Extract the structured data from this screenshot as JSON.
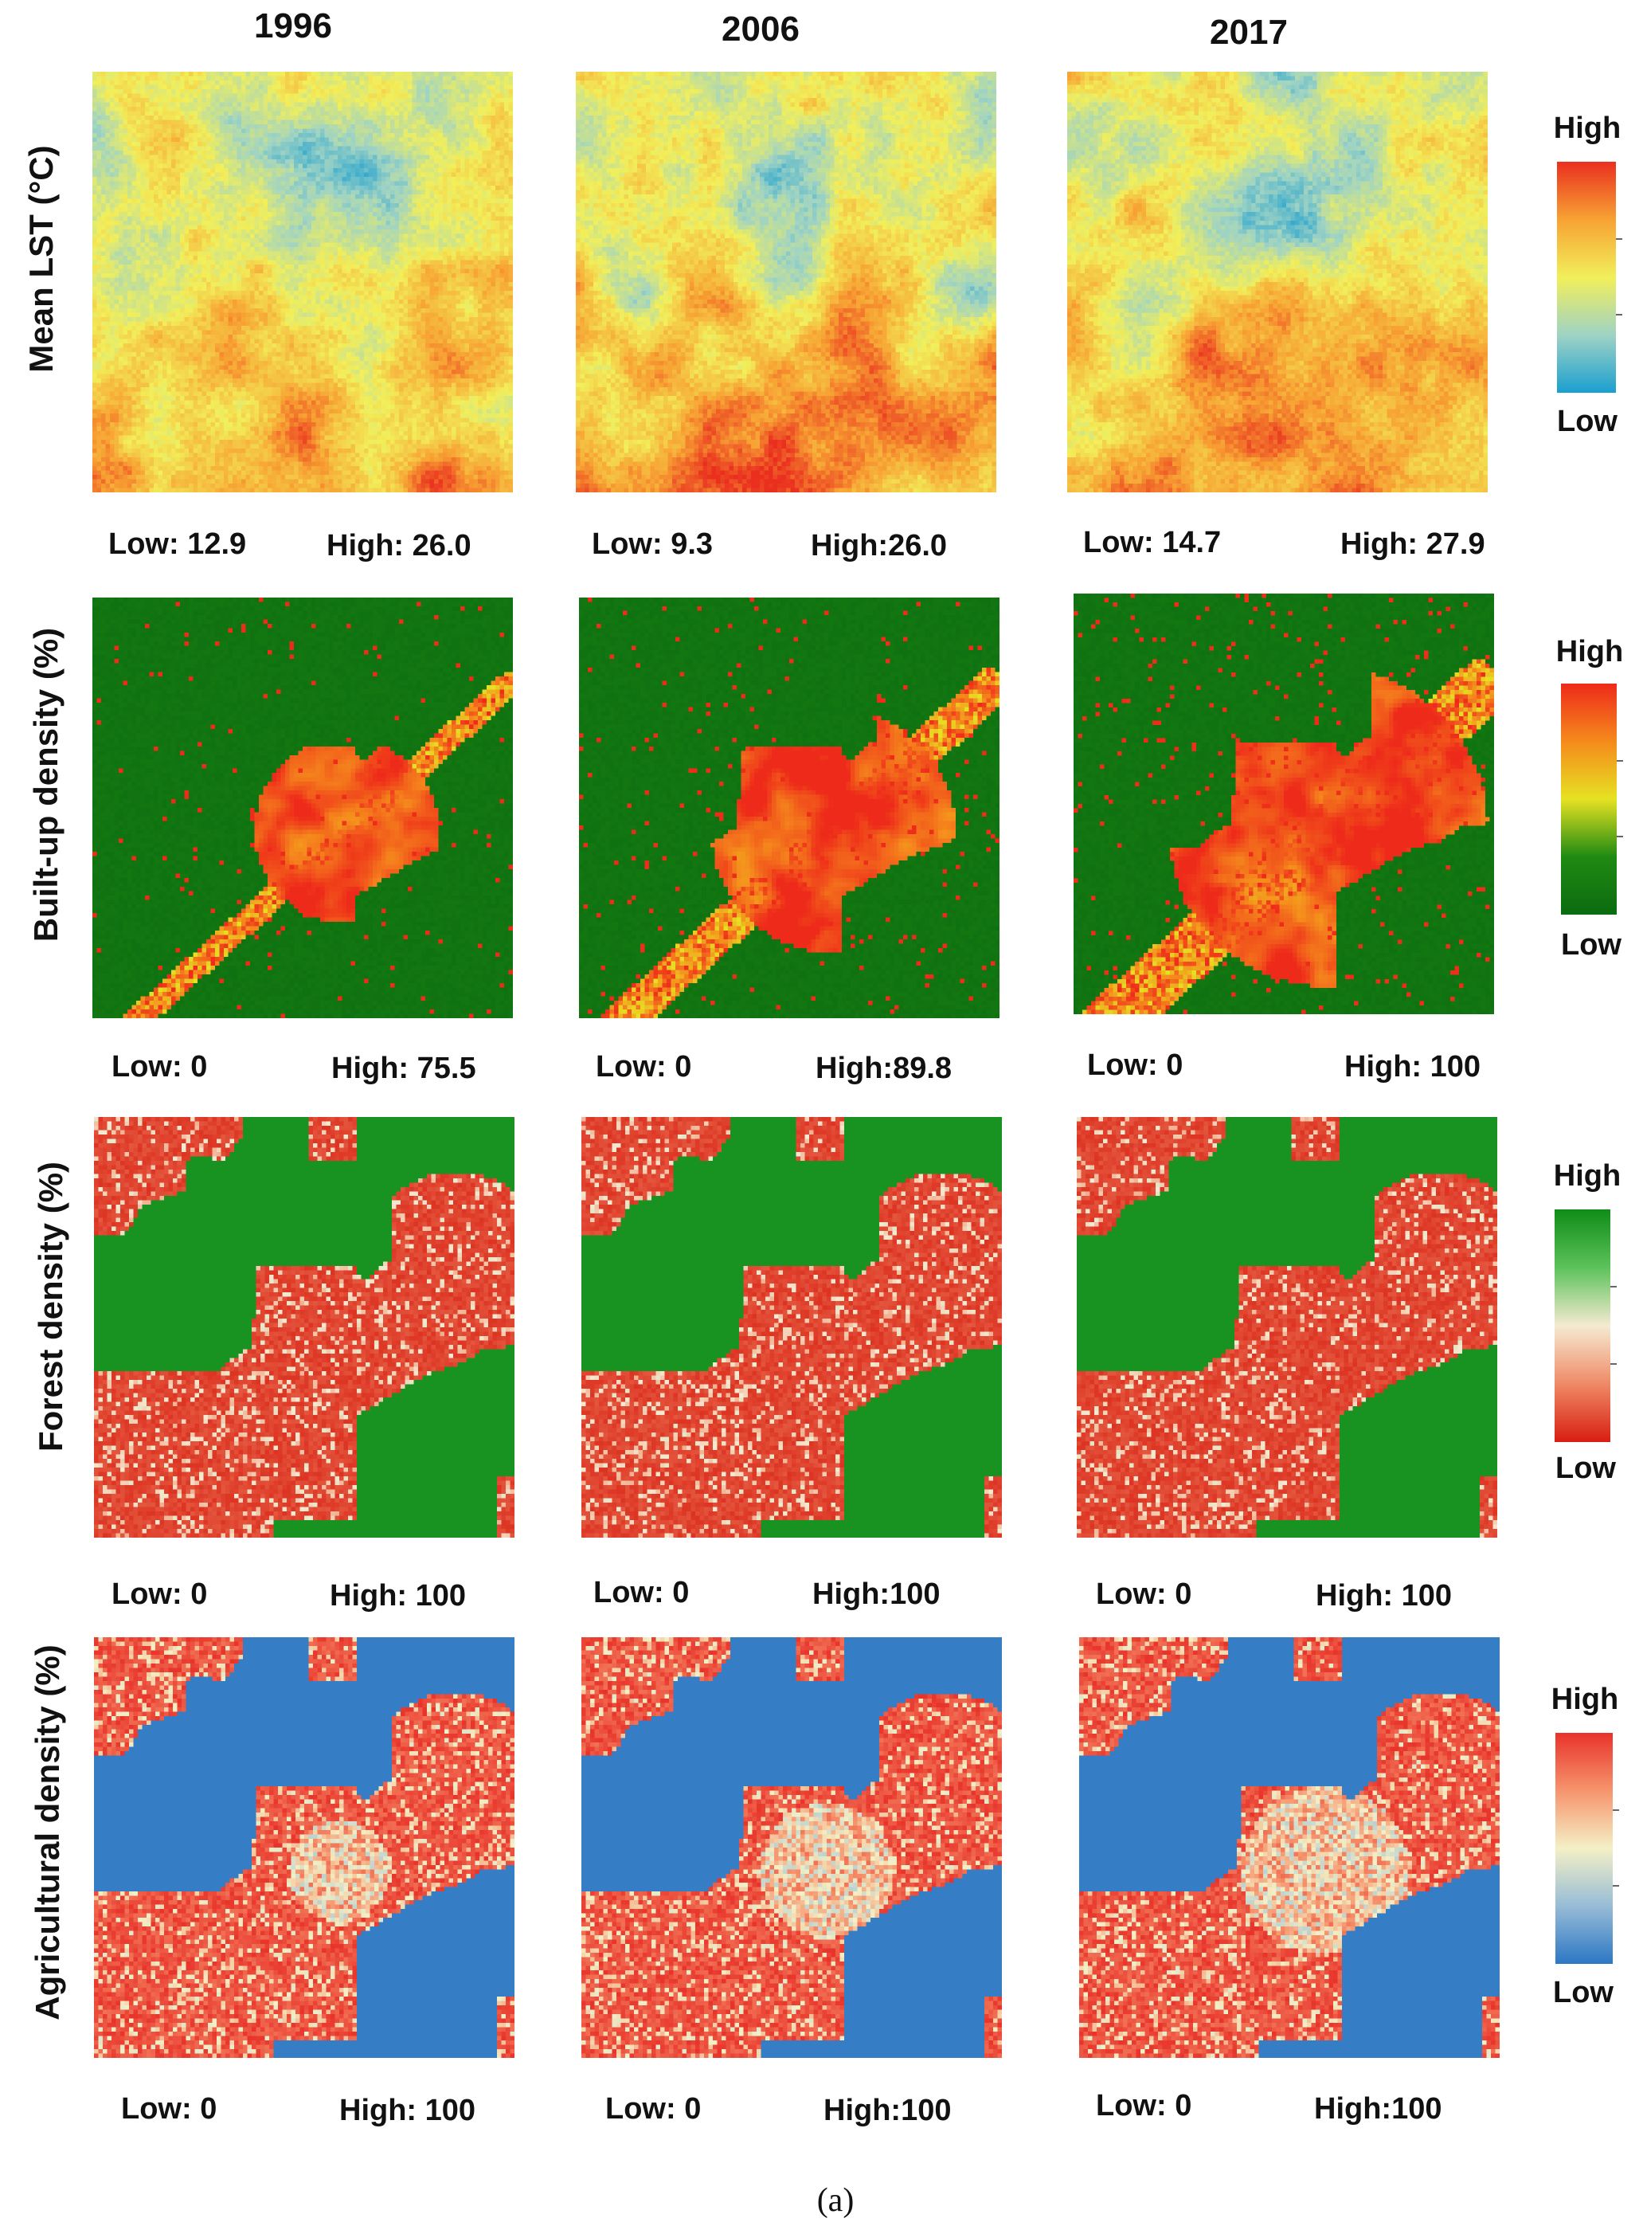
{
  "figure": {
    "years": [
      "1996",
      "2006",
      "2017"
    ],
    "caption": "(a)",
    "legend": {
      "high_label": "High",
      "low_label": "Low"
    },
    "rows": [
      {
        "id": "lst",
        "label": "Mean LST (°C)",
        "colormap": [
          "#1a9fd0",
          "#9fd3c4",
          "#f2ef5a",
          "#f7a233",
          "#ea2f1f"
        ],
        "ranges": [
          {
            "low": "Low: 12.9",
            "high": "High: 26.0"
          },
          {
            "low": "Low: 9.3",
            "high": "High:26.0"
          },
          {
            "low": "Low: 14.7",
            "high": "High: 27.9"
          }
        ]
      },
      {
        "id": "builtup",
        "label": "Built-up density (%)",
        "colormap": [
          "#0b6b10",
          "#1f8a12",
          "#e6e222",
          "#f58a1c",
          "#ee2a1a"
        ],
        "ranges": [
          {
            "low": "Low: 0",
            "high": "High: 75.5"
          },
          {
            "low": "Low: 0",
            "high": "High:89.8"
          },
          {
            "low": "Low: 0",
            "high": "High: 100"
          }
        ]
      },
      {
        "id": "forest",
        "label": "Forest density (%)",
        "colormap": [
          "#d81e12",
          "#ef8a66",
          "#f5ead2",
          "#5cc25a",
          "#0f8c18"
        ],
        "ranges": [
          {
            "low": "Low: 0",
            "high": "High: 100"
          },
          {
            "low": "Low: 0",
            "high": "High:100"
          },
          {
            "low": "Low: 0",
            "high": "High: 100"
          }
        ]
      },
      {
        "id": "agri",
        "label": "Agricultural density (%)",
        "colormap": [
          "#2c77c4",
          "#97bcd6",
          "#f4f0c6",
          "#f6946d",
          "#e8332a"
        ],
        "ranges": [
          {
            "low": "Low: 0",
            "high": "High: 100"
          },
          {
            "low": "Low: 0",
            "high": "High:100"
          },
          {
            "low": "Low: 0",
            "high": "High:100"
          }
        ]
      }
    ]
  }
}
